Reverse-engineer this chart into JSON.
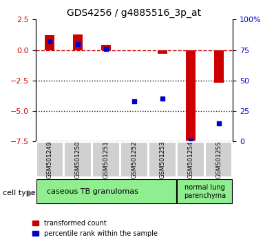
{
  "title": "GDS4256 / g4885516_3p_at",
  "samples": [
    "GSM501249",
    "GSM501250",
    "GSM501251",
    "GSM501252",
    "GSM501253",
    "GSM501254",
    "GSM501255"
  ],
  "transformed_count": [
    1.2,
    1.3,
    0.4,
    -0.05,
    -0.3,
    -7.4,
    -2.7
  ],
  "percentile_rank": [
    82,
    80,
    76,
    33,
    35,
    1,
    15
  ],
  "ylim_left": [
    -7.5,
    2.5
  ],
  "ylim_right": [
    0,
    100
  ],
  "yticks_left": [
    2.5,
    0,
    -2.5,
    -5.0,
    -7.5
  ],
  "yticks_right": [
    100,
    75,
    50,
    25,
    0
  ],
  "cell_type_groups": [
    {
      "label": "caseous TB granulomas",
      "samples": [
        0,
        1,
        2,
        3,
        4
      ],
      "color": "#b3f0b3"
    },
    {
      "label": "normal lung\nparenchyma",
      "samples": [
        5,
        6
      ],
      "color": "#b3f0b3"
    }
  ],
  "cell_type_label": "cell type",
  "legend_red": "transformed count",
  "legend_blue": "percentile rank within the sample",
  "bar_width": 0.35,
  "red_color": "#cc0000",
  "blue_color": "#0000cc",
  "dashed_line_color": "#cc0000",
  "dot_line_color": "black",
  "background_plot": "white",
  "tick_label_color_left": "#cc0000",
  "tick_label_color_right": "#0000cc"
}
